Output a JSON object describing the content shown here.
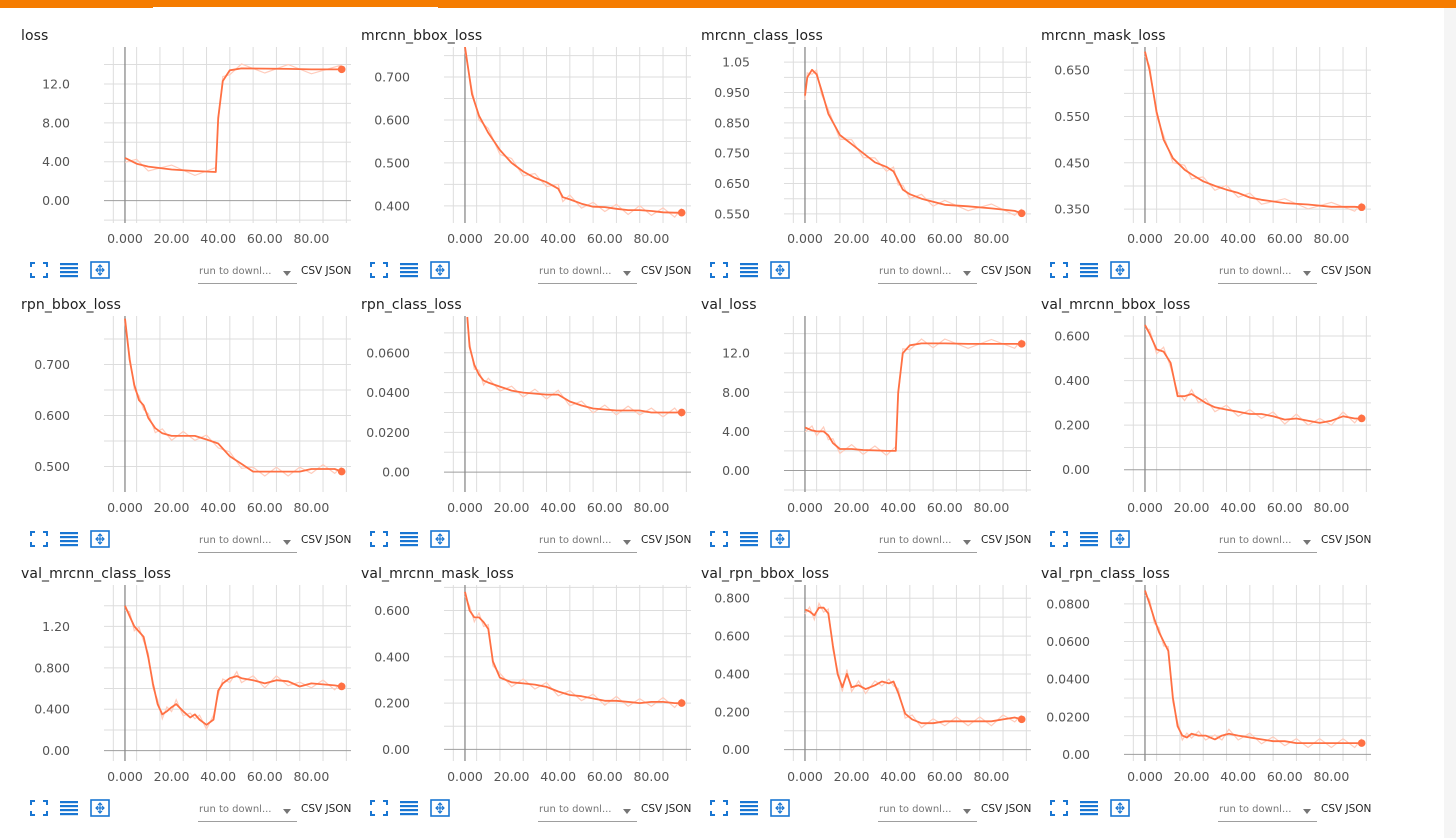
{
  "theme": {
    "accent": "#f57c00",
    "line_color": "#ff7043",
    "raw_line_color": "#ffccbc",
    "icon_color": "#1976d2",
    "grid_color": "#dddddd",
    "axis_color": "#9e9e9e"
  },
  "icons": [
    "expand-icon",
    "lines-icon",
    "fit-domain-icon",
    "dropdown-arrow-icon"
  ],
  "controls": {
    "run_select_label": "run to downl...",
    "csv_label": "CSV",
    "json_label": "JSON"
  },
  "chart_data": [
    {
      "type": "line",
      "title": "loss",
      "x_ticks": [
        "0.000",
        "20.00",
        "40.00",
        "60.00",
        "80.00"
      ],
      "y_ticks": [
        "0.00",
        "4.00",
        "8.00",
        "12.0"
      ],
      "xlim": [
        -9,
        97
      ],
      "ylim": [
        -2.3,
        15.8
      ],
      "series": [
        {
          "x": [
            0,
            5,
            10,
            20,
            30,
            39,
            40,
            42,
            45,
            50,
            60,
            70,
            80,
            93
          ],
          "y": [
            4.4,
            3.8,
            3.5,
            3.2,
            3.05,
            2.95,
            8.5,
            12.3,
            13.4,
            13.6,
            13.58,
            13.55,
            13.5,
            13.5
          ]
        }
      ]
    },
    {
      "type": "line",
      "title": "mrcnn_bbox_loss",
      "x_ticks": [
        "0.000",
        "20.00",
        "40.00",
        "60.00",
        "80.00"
      ],
      "y_ticks": [
        "0.400",
        "0.500",
        "0.600",
        "0.700"
      ],
      "xlim": [
        -9,
        97
      ],
      "ylim": [
        0.36,
        0.77
      ],
      "series": [
        {
          "x": [
            0,
            3,
            6,
            10,
            15,
            20,
            25,
            30,
            35,
            40,
            42,
            45,
            50,
            55,
            60,
            65,
            70,
            75,
            80,
            85,
            90,
            93
          ],
          "y": [
            0.77,
            0.66,
            0.61,
            0.57,
            0.53,
            0.5,
            0.48,
            0.465,
            0.455,
            0.44,
            0.42,
            0.415,
            0.405,
            0.398,
            0.397,
            0.393,
            0.39,
            0.39,
            0.388,
            0.385,
            0.384,
            0.384
          ]
        }
      ]
    },
    {
      "type": "line",
      "title": "mrcnn_class_loss",
      "x_ticks": [
        "0.000",
        "20.00",
        "40.00",
        "60.00",
        "80.00"
      ],
      "y_ticks": [
        "0.550",
        "0.650",
        "0.750",
        "0.850",
        "0.950",
        "1.05"
      ],
      "xlim": [
        -9,
        97
      ],
      "ylim": [
        0.52,
        1.1
      ],
      "series": [
        {
          "x": [
            0,
            1,
            3,
            5,
            7,
            10,
            15,
            20,
            25,
            30,
            35,
            38,
            40,
            42,
            45,
            50,
            55,
            60,
            70,
            80,
            90,
            93
          ],
          "y": [
            0.94,
            1.0,
            1.025,
            1.01,
            0.96,
            0.88,
            0.81,
            0.78,
            0.75,
            0.72,
            0.705,
            0.69,
            0.66,
            0.63,
            0.615,
            0.6,
            0.59,
            0.58,
            0.575,
            0.568,
            0.56,
            0.552
          ]
        }
      ]
    },
    {
      "type": "line",
      "title": "mrcnn_mask_loss",
      "x_ticks": [
        "0.000",
        "20.00",
        "40.00",
        "60.00",
        "80.00"
      ],
      "y_ticks": [
        "0.350",
        "0.450",
        "0.550",
        "0.650"
      ],
      "xlim": [
        -9,
        97
      ],
      "ylim": [
        0.32,
        0.7
      ],
      "series": [
        {
          "x": [
            0,
            2,
            5,
            8,
            12,
            17,
            20,
            25,
            30,
            35,
            40,
            45,
            50,
            60,
            70,
            80,
            90,
            93
          ],
          "y": [
            0.69,
            0.65,
            0.56,
            0.5,
            0.46,
            0.435,
            0.425,
            0.41,
            0.4,
            0.392,
            0.385,
            0.375,
            0.37,
            0.363,
            0.36,
            0.355,
            0.355,
            0.354
          ]
        }
      ]
    },
    {
      "type": "line",
      "title": "rpn_bbox_loss",
      "x_ticks": [
        "0.000",
        "20.00",
        "40.00",
        "60.00",
        "80.00"
      ],
      "y_ticks": [
        "0.500",
        "0.600",
        "0.700"
      ],
      "xlim": [
        -9,
        97
      ],
      "ylim": [
        0.45,
        0.795
      ],
      "series": [
        {
          "x": [
            0,
            2,
            4,
            6,
            8,
            10,
            13,
            16,
            20,
            25,
            30,
            35,
            40,
            45,
            50,
            55,
            60,
            65,
            70,
            75,
            80,
            85,
            90,
            93
          ],
          "y": [
            0.79,
            0.71,
            0.66,
            0.63,
            0.62,
            0.595,
            0.575,
            0.565,
            0.56,
            0.56,
            0.56,
            0.553,
            0.545,
            0.52,
            0.505,
            0.49,
            0.49,
            0.49,
            0.49,
            0.49,
            0.495,
            0.495,
            0.495,
            0.49
          ]
        }
      ]
    },
    {
      "type": "line",
      "title": "rpn_class_loss",
      "x_ticks": [
        "0.000",
        "20.00",
        "40.00",
        "60.00",
        "80.00"
      ],
      "y_ticks": [
        "0.00",
        "0.0200",
        "0.0400",
        "0.0600"
      ],
      "xlim": [
        -9,
        97
      ],
      "ylim": [
        -0.01,
        0.0785
      ],
      "series": [
        {
          "x": [
            1,
            2,
            4,
            6,
            8,
            10,
            15,
            20,
            25,
            30,
            35,
            40,
            45,
            50,
            55,
            60,
            65,
            70,
            75,
            80,
            85,
            90,
            93
          ],
          "y": [
            0.078,
            0.063,
            0.054,
            0.049,
            0.046,
            0.045,
            0.043,
            0.041,
            0.04,
            0.0395,
            0.039,
            0.039,
            0.0355,
            0.0335,
            0.032,
            0.0315,
            0.031,
            0.031,
            0.031,
            0.03,
            0.03,
            0.03,
            0.03
          ]
        }
      ]
    },
    {
      "type": "line",
      "title": "val_loss",
      "x_ticks": [
        "0.000",
        "20.00",
        "40.00",
        "60.00",
        "80.00"
      ],
      "y_ticks": [
        "0.00",
        "4.00",
        "8.00",
        "12.0"
      ],
      "xlim": [
        -9,
        97
      ],
      "ylim": [
        -2.2,
        15.8
      ],
      "series": [
        {
          "x": [
            0,
            3,
            5,
            8,
            10,
            12,
            15,
            20,
            25,
            30,
            35,
            39,
            40,
            42,
            45,
            50,
            55,
            60,
            70,
            80,
            90,
            93
          ],
          "y": [
            4.4,
            4.1,
            4.0,
            4.0,
            3.6,
            2.8,
            2.2,
            2.2,
            2.1,
            2.05,
            2.0,
            2.0,
            8.0,
            12.0,
            12.8,
            13.0,
            13.0,
            13.0,
            12.95,
            12.95,
            12.95,
            12.95
          ]
        }
      ]
    },
    {
      "type": "line",
      "title": "val_mrcnn_bbox_loss",
      "x_ticks": [
        "0.000",
        "20.00",
        "40.00",
        "60.00",
        "80.00"
      ],
      "y_ticks": [
        "0.00",
        "0.200",
        "0.400",
        "0.600"
      ],
      "xlim": [
        -9,
        97
      ],
      "ylim": [
        -0.1,
        0.69
      ],
      "series": [
        {
          "x": [
            0,
            2,
            5,
            8,
            11,
            14,
            17,
            20,
            23,
            26,
            30,
            35,
            40,
            45,
            50,
            55,
            60,
            65,
            70,
            75,
            80,
            85,
            90,
            93
          ],
          "y": [
            0.65,
            0.61,
            0.54,
            0.53,
            0.48,
            0.33,
            0.33,
            0.34,
            0.32,
            0.3,
            0.28,
            0.27,
            0.26,
            0.25,
            0.25,
            0.24,
            0.225,
            0.23,
            0.22,
            0.21,
            0.22,
            0.24,
            0.23,
            0.23
          ]
        }
      ]
    },
    {
      "type": "line",
      "title": "val_mrcnn_class_loss",
      "x_ticks": [
        "0.000",
        "20.00",
        "40.00",
        "60.00",
        "80.00"
      ],
      "y_ticks": [
        "0.00",
        "0.400",
        "0.800",
        "1.20"
      ],
      "xlim": [
        -9,
        97
      ],
      "ylim": [
        -0.1,
        1.6
      ],
      "series": [
        {
          "x": [
            0,
            2,
            4,
            6,
            8,
            10,
            12,
            14,
            16,
            18,
            20,
            22,
            25,
            28,
            30,
            32,
            35,
            38,
            40,
            42,
            45,
            48,
            50,
            55,
            60,
            65,
            70,
            75,
            80,
            85,
            90,
            93
          ],
          "y": [
            1.4,
            1.3,
            1.2,
            1.15,
            1.1,
            0.9,
            0.65,
            0.45,
            0.35,
            0.38,
            0.42,
            0.45,
            0.38,
            0.32,
            0.35,
            0.3,
            0.25,
            0.3,
            0.58,
            0.65,
            0.7,
            0.72,
            0.7,
            0.68,
            0.65,
            0.68,
            0.67,
            0.62,
            0.65,
            0.64,
            0.63,
            0.62
          ]
        }
      ]
    },
    {
      "type": "line",
      "title": "val_mrcnn_mask_loss",
      "x_ticks": [
        "0.000",
        "20.00",
        "40.00",
        "60.00",
        "80.00"
      ],
      "y_ticks": [
        "0.00",
        "0.200",
        "0.400",
        "0.600"
      ],
      "xlim": [
        -9,
        97
      ],
      "ylim": [
        -0.05,
        0.71
      ],
      "series": [
        {
          "x": [
            0,
            2,
            4,
            6,
            8,
            10,
            12,
            15,
            20,
            25,
            30,
            35,
            40,
            45,
            50,
            55,
            60,
            65,
            70,
            75,
            80,
            85,
            90,
            93
          ],
          "y": [
            0.68,
            0.6,
            0.57,
            0.57,
            0.55,
            0.52,
            0.38,
            0.31,
            0.29,
            0.285,
            0.28,
            0.27,
            0.25,
            0.235,
            0.23,
            0.22,
            0.21,
            0.21,
            0.205,
            0.2,
            0.205,
            0.205,
            0.2,
            0.2
          ]
        }
      ]
    },
    {
      "type": "line",
      "title": "val_rpn_bbox_loss",
      "x_ticks": [
        "0.000",
        "20.00",
        "40.00",
        "60.00",
        "80.00"
      ],
      "y_ticks": [
        "0.00",
        "0.200",
        "0.400",
        "0.600",
        "0.800"
      ],
      "xlim": [
        -9,
        97
      ],
      "ylim": [
        -0.06,
        0.87
      ],
      "series": [
        {
          "x": [
            0,
            2,
            4,
            6,
            8,
            10,
            12,
            14,
            16,
            18,
            20,
            23,
            26,
            30,
            33,
            36,
            38,
            40,
            43,
            46,
            50,
            55,
            60,
            65,
            70,
            75,
            80,
            85,
            90,
            93
          ],
          "y": [
            0.74,
            0.73,
            0.71,
            0.75,
            0.75,
            0.72,
            0.55,
            0.4,
            0.33,
            0.4,
            0.33,
            0.34,
            0.32,
            0.34,
            0.36,
            0.35,
            0.36,
            0.3,
            0.19,
            0.16,
            0.14,
            0.14,
            0.15,
            0.15,
            0.15,
            0.15,
            0.15,
            0.16,
            0.17,
            0.16
          ]
        }
      ]
    },
    {
      "type": "line",
      "title": "val_rpn_class_loss",
      "x_ticks": [
        "0.000",
        "20.00",
        "40.00",
        "60.00",
        "80.00"
      ],
      "y_ticks": [
        "0.00",
        "0.0200",
        "0.0400",
        "0.0600",
        "0.0800"
      ],
      "xlim": [
        -9,
        97
      ],
      "ylim": [
        -0.0035,
        0.09
      ],
      "series": [
        {
          "x": [
            0,
            2,
            4,
            6,
            8,
            10,
            12,
            14,
            16,
            18,
            20,
            23,
            26,
            30,
            33,
            36,
            40,
            45,
            50,
            55,
            60,
            65,
            70,
            75,
            80,
            85,
            90,
            93
          ],
          "y": [
            0.087,
            0.08,
            0.072,
            0.065,
            0.06,
            0.055,
            0.03,
            0.015,
            0.01,
            0.009,
            0.011,
            0.01,
            0.01,
            0.008,
            0.01,
            0.011,
            0.01,
            0.009,
            0.008,
            0.007,
            0.007,
            0.006,
            0.006,
            0.006,
            0.006,
            0.006,
            0.006,
            0.006
          ]
        }
      ]
    }
  ]
}
